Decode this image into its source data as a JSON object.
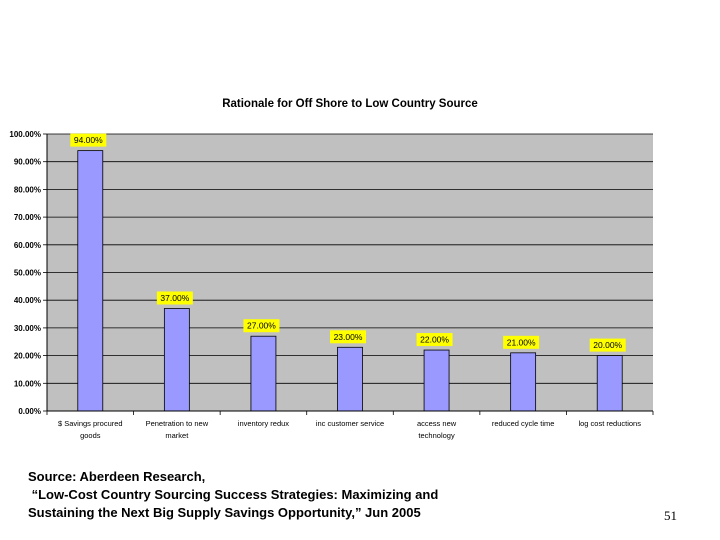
{
  "chart_data": {
    "type": "bar",
    "title": "Rationale for Off Shore to Low Country Source",
    "categories": [
      [
        "$ Savings procured",
        "goods"
      ],
      [
        "Penetration to new",
        "market"
      ],
      [
        "inventory redux"
      ],
      [
        "inc customer service"
      ],
      [
        "access new",
        "technology"
      ],
      [
        "reduced cycle time"
      ],
      [
        "log cost reductions"
      ]
    ],
    "values": [
      94,
      37,
      27,
      23,
      22,
      21,
      20
    ],
    "data_labels": [
      "94.00%",
      "37.00%",
      "27.00%",
      "23.00%",
      "22.00%",
      "21.00%",
      "20.00%"
    ],
    "y_ticks": [
      "0.00%",
      "10.00%",
      "20.00%",
      "30.00%",
      "40.00%",
      "50.00%",
      "60.00%",
      "70.00%",
      "80.00%",
      "90.00%",
      "100.00%"
    ],
    "ylim": [
      0,
      100
    ],
    "grid": true,
    "legend": "none",
    "colors": {
      "plot_background": "#c0c0c0",
      "bar_fill": "#9999ff",
      "bar_stroke": "#000000",
      "label_background": "#ffff00",
      "gridline": "#000000"
    }
  },
  "source": {
    "line1": "Source: Aberdeen Research,",
    "line2": " “Low-Cost Country Sourcing Success Strategies: Maximizing and",
    "line3": "Sustaining the Next Big Supply Savings Opportunity,” Jun 2005"
  },
  "page_number": "51"
}
